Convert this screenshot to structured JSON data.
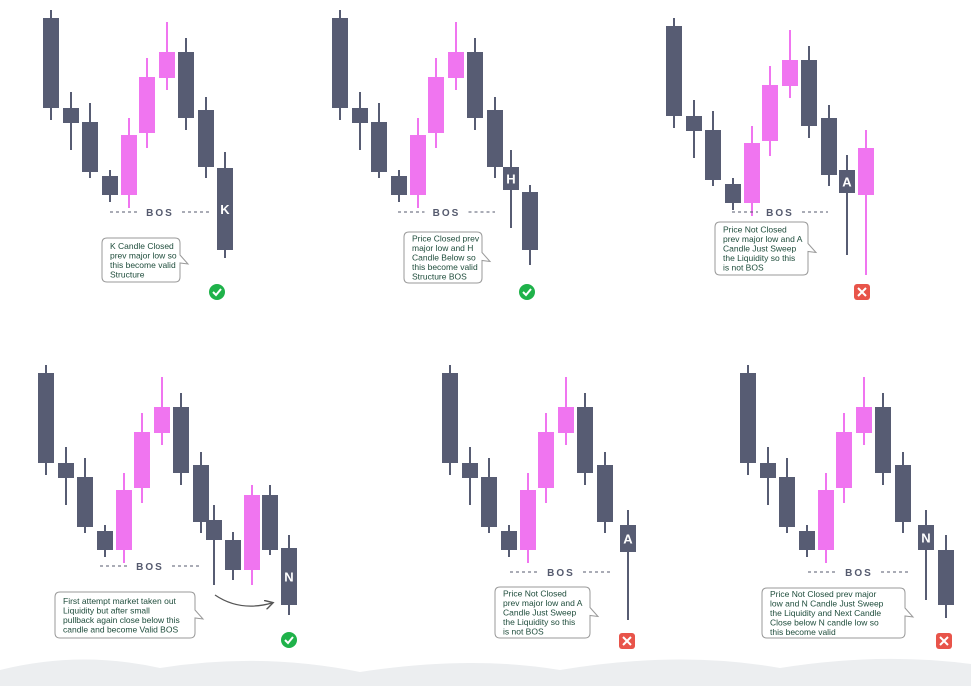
{
  "panels": [
    {
      "bos": "BOS",
      "candle_label": "K",
      "note": [
        "K Candle Closed",
        "prev major low so",
        "this become valid",
        "Structure"
      ]
    },
    {
      "bos": "BOS",
      "candle_label": "H",
      "note": [
        "Price Closed prev",
        "major low and H",
        "Candle Below so",
        "this become valid",
        "Structure BOS"
      ]
    },
    {
      "bos": "BOS",
      "candle_label": "A",
      "note": [
        "Price Not Closed",
        "prev major low and A",
        "Candle Just Sweep",
        "the Liquidity so this",
        "is not BOS"
      ]
    },
    {
      "bos": "BOS",
      "candle_label": "N",
      "note": [
        "First attempt market taken out",
        "Liquidity  but after small",
        "pullback again close below this",
        "candle and become Valid BOS"
      ]
    },
    {
      "bos": "BOS",
      "candle_label": "A",
      "note": [
        "Price Not Closed",
        "prev major low and A",
        "Candle Just Sweep",
        "the Liquidity so this",
        "is not BOS"
      ]
    },
    {
      "bos": "BOS",
      "candle_label": "N",
      "note": [
        "Price Not Closed prev major",
        "low and N Candle Just Sweep",
        "the Liquidity and Next Candle",
        "Close below N candle low so",
        "this become valid"
      ]
    }
  ]
}
